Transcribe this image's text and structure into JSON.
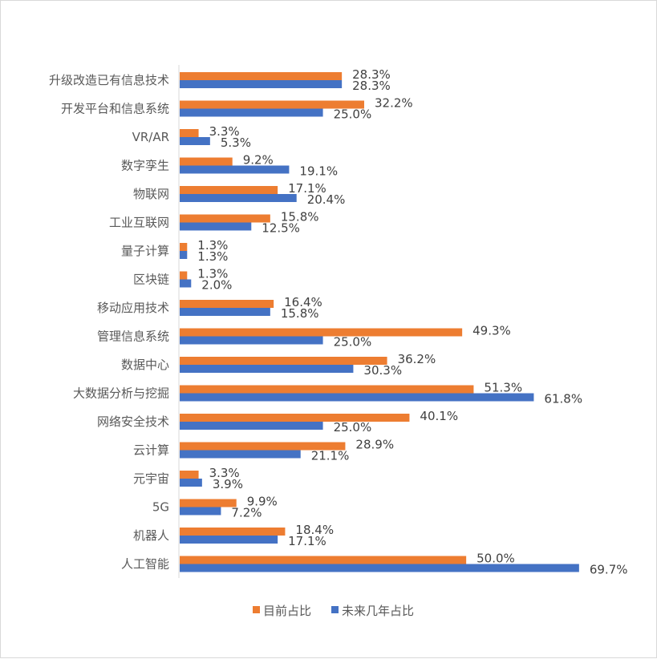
{
  "chart_data": {
    "type": "bar",
    "orientation": "horizontal",
    "categories": [
      "升级改造已有信息技术",
      "开发平台和信息系统",
      "VR/AR",
      "数字孪生",
      "物联网",
      "工业互联网",
      "量子计算",
      "区块链",
      "移动应用技术",
      "管理信息系统",
      "数据中心",
      "大数据分析与挖掘",
      "网络安全技术",
      "云计算",
      "元宇宙",
      "5G",
      "机器人",
      "人工智能"
    ],
    "series": [
      {
        "name": "目前占比",
        "color": "#ED7D31",
        "values": [
          28.3,
          32.2,
          3.3,
          9.2,
          17.1,
          15.8,
          1.3,
          1.3,
          16.4,
          49.3,
          36.2,
          51.3,
          40.1,
          28.9,
          3.3,
          9.9,
          18.4,
          50.0
        ]
      },
      {
        "name": "未来几年占比",
        "color": "#4472C4",
        "values": [
          28.3,
          25.0,
          5.3,
          19.1,
          20.4,
          12.5,
          1.3,
          2.0,
          15.8,
          25.0,
          30.3,
          61.8,
          25.0,
          21.1,
          3.9,
          7.2,
          17.1,
          69.7
        ]
      }
    ],
    "value_suffix": "%",
    "xlim": [
      0,
      70
    ],
    "grid": false,
    "legend_position": "bottom"
  }
}
